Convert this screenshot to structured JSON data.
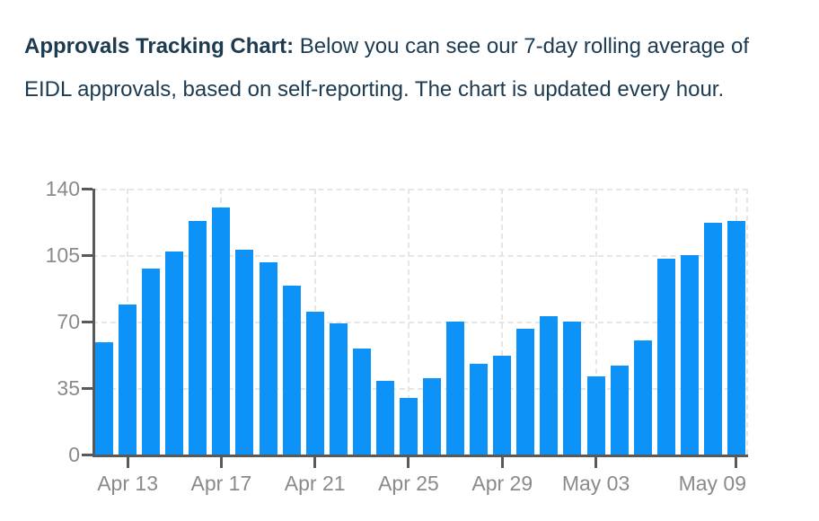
{
  "heading": {
    "bold": "Approvals Tracking Chart:",
    "rest": "Below you can see our 7-day rolling average of EIDL approvals, based on self-reporting. The chart is updated every hour."
  },
  "colors": {
    "bar": "#0d92f8",
    "heading_text": "#1c3a50",
    "axis_line": "#595959",
    "tick_label": "#8a8a8a",
    "gridline": "#e6e6e6",
    "background": "#ffffff"
  },
  "chart_data": {
    "type": "bar",
    "title": "",
    "xlabel": "",
    "ylabel": "",
    "x": [
      "Apr 12",
      "Apr 13",
      "Apr 14",
      "Apr 15",
      "Apr 16",
      "Apr 17",
      "Apr 18",
      "Apr 19",
      "Apr 20",
      "Apr 21",
      "Apr 22",
      "Apr 23",
      "Apr 24",
      "Apr 25",
      "Apr 26",
      "Apr 27",
      "Apr 28",
      "Apr 29",
      "Apr 30",
      "May 01",
      "May 02",
      "May 03",
      "May 04",
      "May 05",
      "May 06",
      "May 07",
      "May 08",
      "May 09"
    ],
    "values": [
      59,
      79,
      98,
      107,
      123,
      130,
      108,
      101,
      89,
      75,
      69,
      56,
      39,
      30,
      40,
      70,
      48,
      52,
      66,
      73,
      70,
      41,
      47,
      60,
      103,
      105,
      122,
      123
    ],
    "x_tick_labels": [
      "Apr 13",
      "Apr 17",
      "Apr 21",
      "Apr 25",
      "Apr 29",
      "May 03",
      "May 09"
    ],
    "x_tick_indices": [
      1,
      5,
      9,
      13,
      17,
      21,
      27
    ],
    "y_ticks": [
      0,
      35,
      70,
      105,
      140
    ],
    "ylim": [
      0,
      140
    ],
    "grid": "dashed",
    "legend": "none"
  }
}
